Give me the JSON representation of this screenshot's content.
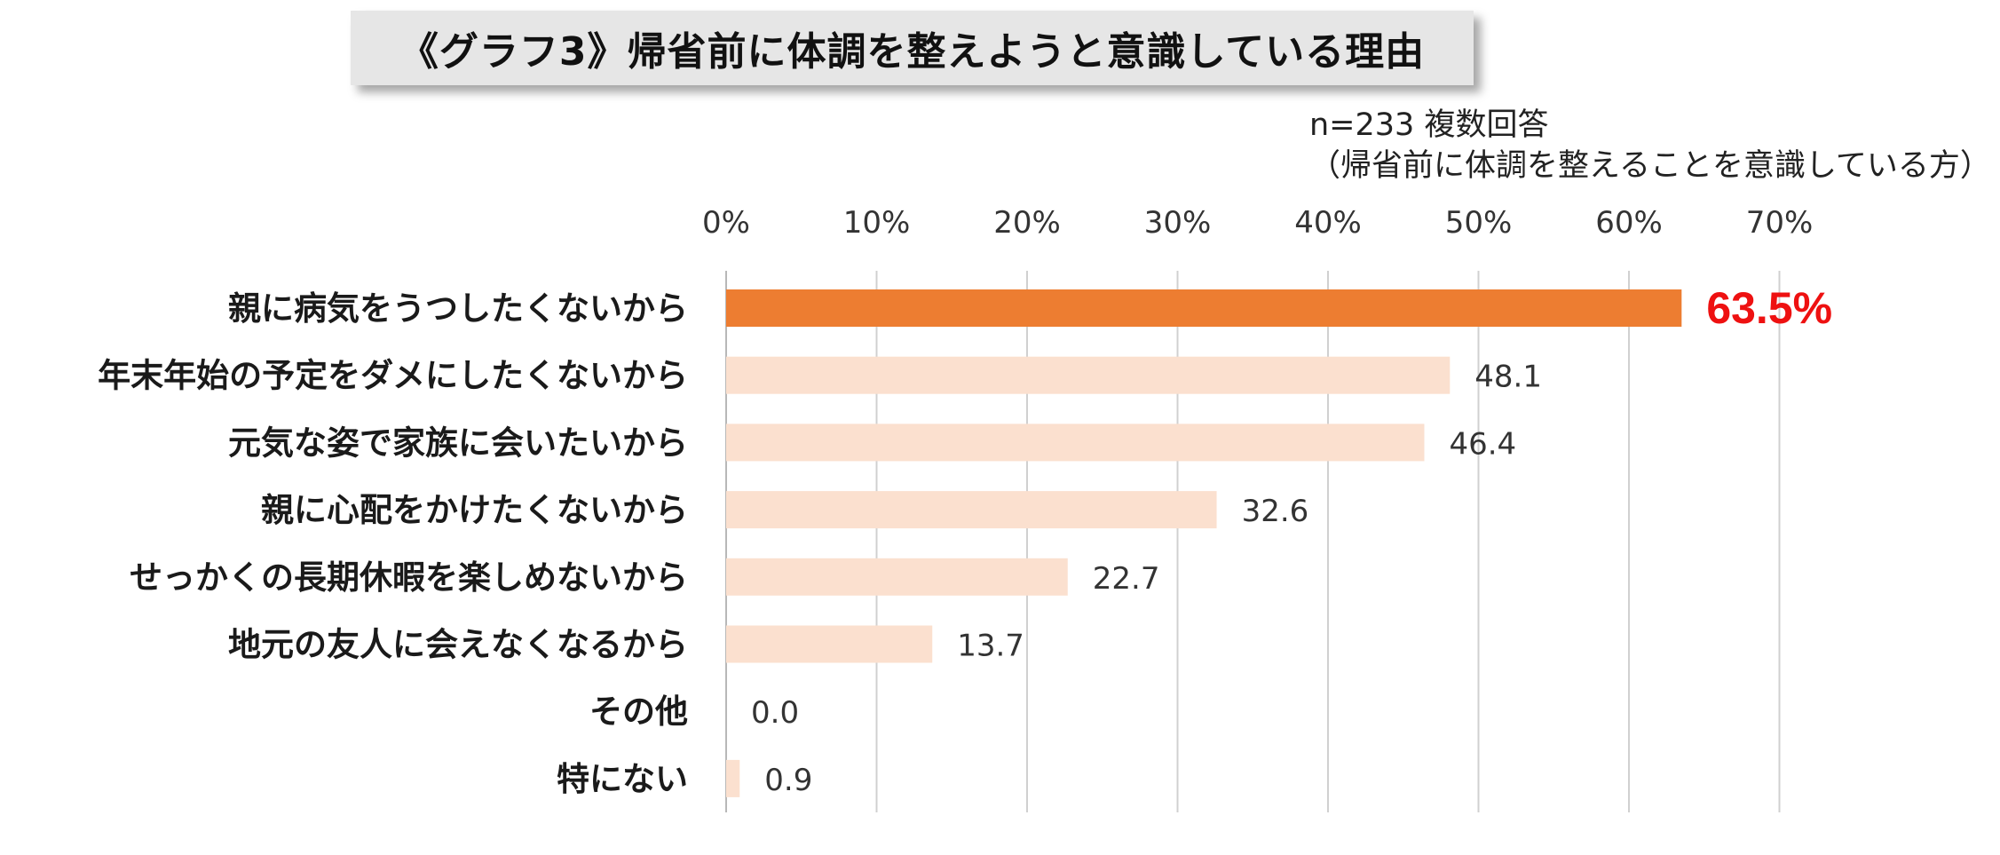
{
  "title": "《グラフ3》帰省前に体調を整えようと意識している理由",
  "note_line1": "n=233  複数回答",
  "note_line2": "（帰省前に体調を整えることを意識している方）",
  "colors": {
    "highlight_bar": "#ed7d31",
    "bar": "#fbe0cf",
    "highlight_label": "#ee1111",
    "grid": "#d0d0d0"
  },
  "chart_data": {
    "type": "bar",
    "orientation": "horizontal",
    "categories": [
      "親に病気をうつしたくないから",
      "年末年始の予定をダメにしたくないから",
      "元気な姿で家族に会いたいから",
      "親に心配をかけたくないから",
      "せっかくの長期休暇を楽しめないから",
      "地元の友人に会えなくなるから",
      "その他",
      "特にない"
    ],
    "values": [
      63.5,
      48.1,
      46.4,
      32.6,
      22.7,
      13.7,
      0.0,
      0.9
    ],
    "value_labels": [
      "63.5%",
      "48.1",
      "46.4",
      "32.6",
      "22.7",
      "13.7",
      "0.0",
      "0.9"
    ],
    "highlight_index": 0,
    "xlim": [
      0,
      70
    ],
    "x_ticks": [
      "0%",
      "10%",
      "20%",
      "30%",
      "40%",
      "50%",
      "60%",
      "70%"
    ],
    "grid": true,
    "axis_position": "top"
  }
}
